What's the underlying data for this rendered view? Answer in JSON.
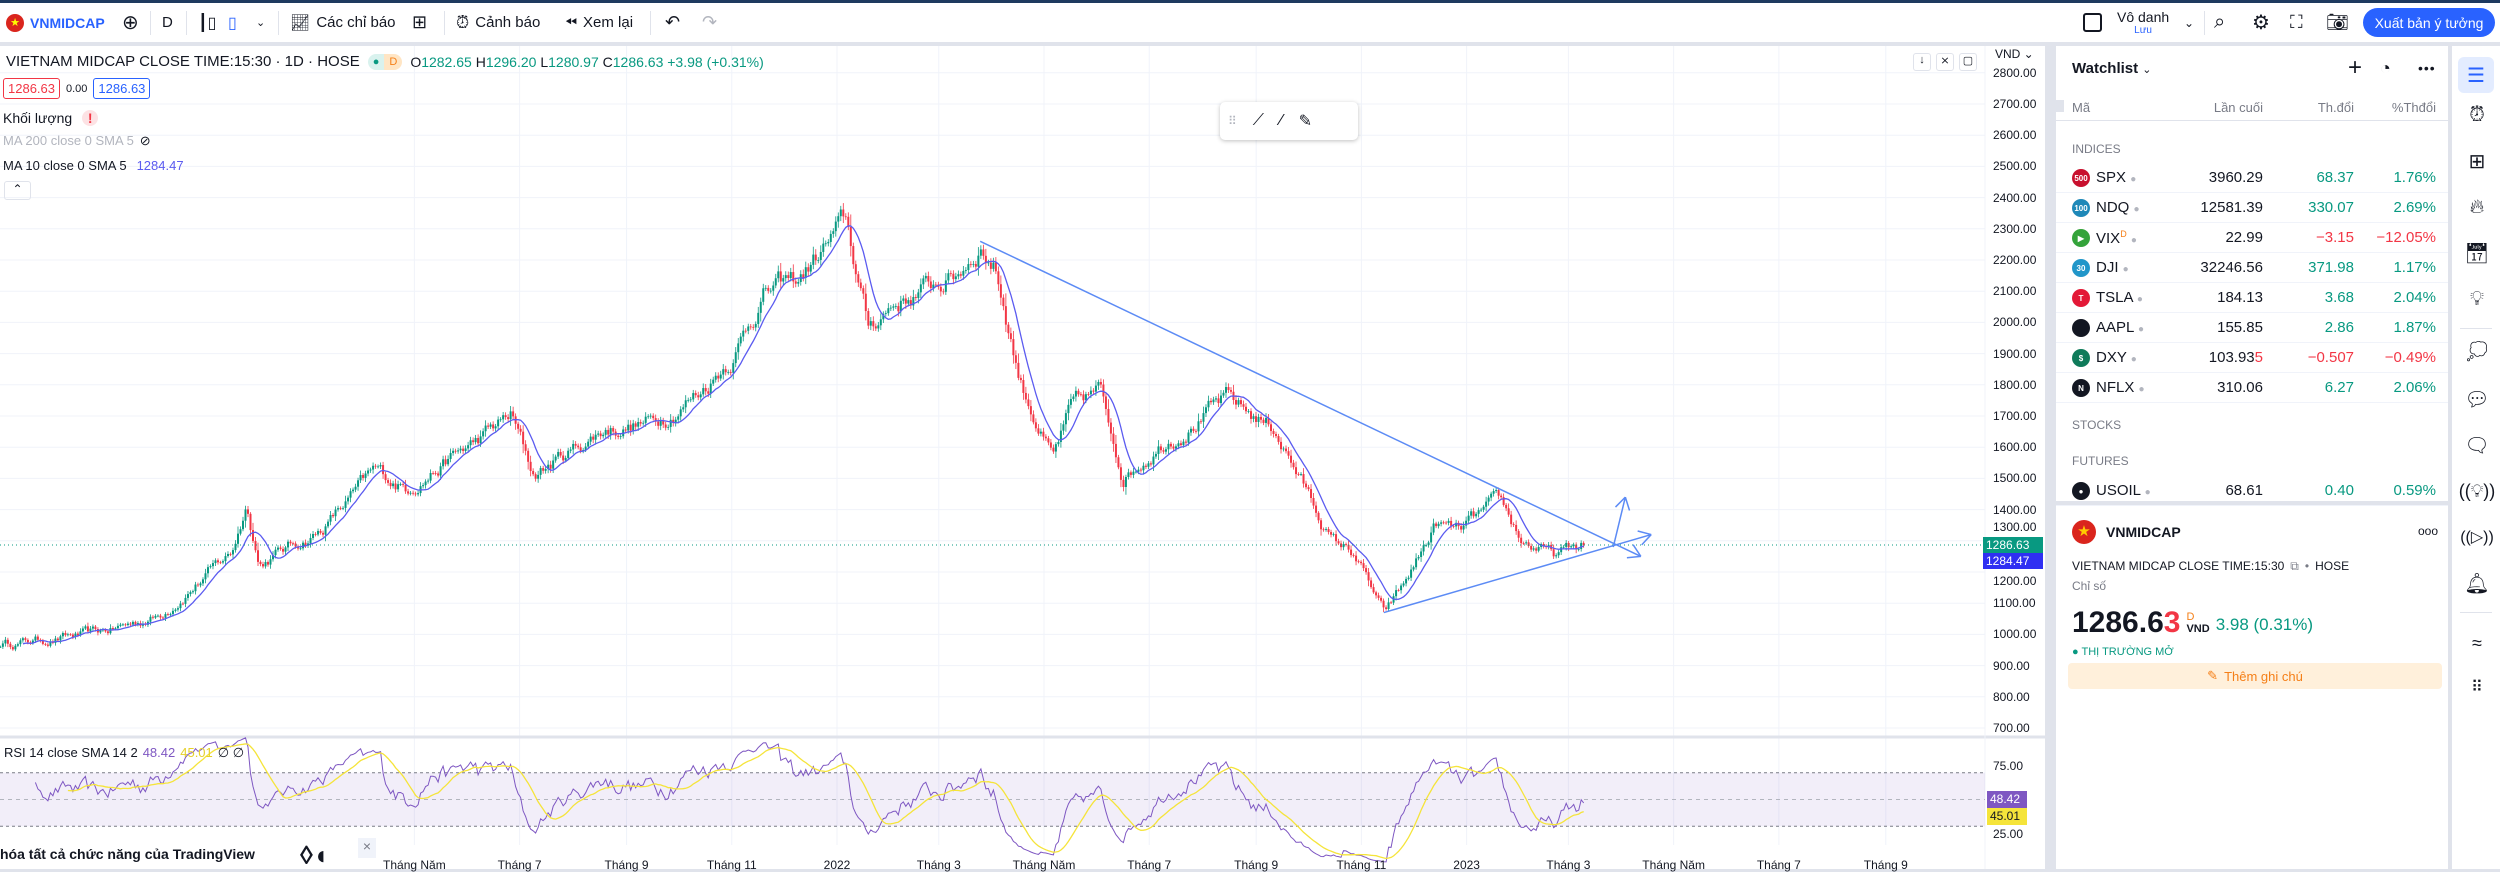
{
  "toolbar": {
    "symbol": "VNMIDCAP",
    "interval": "D",
    "indicators": "Các chỉ báo",
    "alert": "Cảnh báo",
    "replay": "Xem lại",
    "layout_name": "Vô danh",
    "save": "Lưu",
    "publish": "Xuất bản ý tưởng"
  },
  "legend": {
    "title": "VIETNAM MIDCAP CLOSE TIME:15:30 · 1D · HOSE",
    "badge": "D",
    "o_label": "O",
    "o": "1282.65",
    "h_label": "H",
    "h": "1296.20",
    "l_label": "L",
    "l": "1280.97",
    "c_label": "C",
    "c": "1286.63",
    "change": "+3.98 (+0.31%)",
    "sell": "1286.63",
    "spread": "0.00",
    "buy": "1286.63",
    "volume": "Khối lượng",
    "ma200": "MA 200 close 0 SMA 5",
    "ma10": "MA 10 close 0 SMA 5",
    "ma10_value": "1284.47",
    "rsi": "RSI 14 close SMA 14 2",
    "rsi_value": "48.42",
    "rsi_sma_value": "45.01",
    "rsi_extra": "∅ ∅"
  },
  "currency": "VND",
  "price_axis": [
    "2800.00",
    "2700.00",
    "2600.00",
    "2500.00",
    "2400.00",
    "2300.00",
    "2200.00",
    "2100.00",
    "2000.00",
    "1900.00",
    "1800.00",
    "1700.00",
    "1600.00",
    "1500.00",
    "1400.00",
    "1300.00",
    "1200.00",
    "1100.00",
    "1000.00",
    "900.00",
    "800.00",
    "700.00"
  ],
  "price_labels": {
    "last": "1286.63",
    "ma": "1284.47"
  },
  "rsi_axis": [
    "75.00",
    "25.00"
  ],
  "rsi_labels": {
    "rsi": "48.42",
    "sma": "45.01"
  },
  "time_axis": [
    {
      "label": "Tháng Năm",
      "date": "2021-05-01"
    },
    {
      "label": "Tháng 7",
      "date": "2021-07-01"
    },
    {
      "label": "Tháng 9",
      "date": "2021-09-01"
    },
    {
      "label": "Tháng 11",
      "date": "2021-11-01"
    },
    {
      "label": "2022",
      "date": "2022-01-01"
    },
    {
      "label": "Tháng 3",
      "date": "2022-03-01"
    },
    {
      "label": "Tháng Năm",
      "date": "2022-05-01"
    },
    {
      "label": "Tháng 7",
      "date": "2022-07-01"
    },
    {
      "label": "Tháng 9",
      "date": "2022-09-01"
    },
    {
      "label": "Tháng 11",
      "date": "2022-11-01"
    },
    {
      "label": "2023",
      "date": "2023-01-01"
    },
    {
      "label": "Tháng 3",
      "date": "2023-03-01"
    },
    {
      "label": "Tháng Năm",
      "date": "2023-05-01"
    },
    {
      "label": "Tháng 7",
      "date": "2023-07-01"
    },
    {
      "label": "Tháng 9",
      "date": "2023-09-01"
    }
  ],
  "chart_data": {
    "type": "candlestick",
    "ylim": [
      700,
      2800
    ],
    "rsi_levels": [
      70,
      50,
      30
    ],
    "price_path": [
      [
        "2020-09-03",
        970
      ],
      [
        "2020-10-28",
        1000
      ],
      [
        "2020-12-04",
        1060
      ],
      [
        "2021-01-15",
        1260
      ],
      [
        "2021-01-24",
        1420
      ],
      [
        "2021-01-31",
        1230
      ],
      [
        "2021-03-07",
        1330
      ],
      [
        "2021-04-08",
        1520
      ],
      [
        "2021-04-26",
        1470
      ],
      [
        "2021-06-07",
        1620
      ],
      [
        "2021-06-26",
        1700
      ],
      [
        "2021-07-09",
        1510
      ],
      [
        "2021-08-20",
        1660
      ],
      [
        "2021-09-17",
        1680
      ],
      [
        "2021-10-14",
        1780
      ],
      [
        "2021-11-02",
        1900
      ],
      [
        "2021-11-20",
        2100
      ],
      [
        "2021-12-09",
        2130
      ],
      [
        "2022-01-06",
        2320
      ],
      [
        "2022-01-19",
        1980
      ],
      [
        "2022-02-02",
        2060
      ],
      [
        "2022-03-11",
        2150
      ],
      [
        "2022-03-25",
        2250
      ],
      [
        "2022-04-03",
        2180
      ],
      [
        "2022-04-17",
        1820
      ],
      [
        "2022-05-06",
        1560
      ],
      [
        "2022-05-17",
        1720
      ],
      [
        "2022-06-02",
        1780
      ],
      [
        "2022-06-16",
        1510
      ],
      [
        "2022-07-09",
        1620
      ],
      [
        "2022-08-15",
        1750
      ],
      [
        "2022-09-12",
        1660
      ],
      [
        "2022-10-01",
        1450
      ],
      [
        "2022-10-15",
        1300
      ],
      [
        "2022-10-28",
        1260
      ],
      [
        "2022-11-14",
        1060
      ],
      [
        "2022-11-25",
        1150
      ],
      [
        "2022-12-14",
        1350
      ],
      [
        "2022-12-27",
        1330
      ],
      [
        "2023-01-20",
        1420
      ],
      [
        "2023-02-02",
        1300
      ],
      [
        "2023-02-21",
        1250
      ],
      [
        "2023-03-11",
        1287
      ]
    ],
    "trendlines": [
      {
        "from": [
          "2022-03-25",
          2260
        ],
        "to": [
          "2023-04-12",
          1250
        ]
      },
      {
        "from": [
          "2022-11-14",
          1070
        ],
        "to": [
          "2023-04-18",
          1320
        ]
      },
      {
        "from": [
          "2023-03-27",
          1280
        ],
        "to": [
          "2023-04-03",
          1440
        ]
      }
    ],
    "colors": {
      "up": "#089981",
      "down": "#f23645",
      "ma": "#5b5bf0",
      "rsi": "#7e57c2",
      "rsi_sma": "#f5e43a",
      "trend": "#5c8bf5"
    }
  },
  "watchlist": {
    "title": "Watchlist",
    "cols": [
      "Mã",
      "Lần cuối",
      "Th.đổi",
      "%Thđổi"
    ],
    "sections": {
      "indices": "INDICES",
      "stocks": "STOCKS",
      "futures": "FUTURES"
    },
    "rows": [
      {
        "icon": "500",
        "color": "#c8102e",
        "sym": "SPX",
        "last": "3960.29",
        "chg": "68.37",
        "pct": "1.76%",
        "up": true
      },
      {
        "icon": "100",
        "color": "#1e88b8",
        "sym": "NDQ",
        "last": "12581.39",
        "chg": "330.07",
        "pct": "2.69%",
        "up": true
      },
      {
        "icon": "▶",
        "color": "#34a33a",
        "sym": "VIX",
        "badge": "D",
        "last": "22.99",
        "chg": "−3.15",
        "pct": "−12.05%",
        "up": false
      },
      {
        "icon": "30",
        "color": "#2196c9",
        "sym": "DJI",
        "last": "32246.56",
        "chg": "371.98",
        "pct": "1.17%",
        "up": true
      },
      {
        "icon": "T",
        "color": "#e31937",
        "sym": "TSLA",
        "last": "184.13",
        "chg": "3.68",
        "pct": "2.04%",
        "up": true
      },
      {
        "icon": "",
        "color": "#131722",
        "sym": "AAPL",
        "last": "155.85",
        "chg": "2.86",
        "pct": "1.87%",
        "up": true
      },
      {
        "icon": "$",
        "color": "#0f7b5a",
        "sym": "DXY",
        "last": "103.93",
        "last_tail": "5",
        "chg": "−0.507",
        "pct": "−0.49%",
        "up": false
      },
      {
        "icon": "N",
        "color": "#131722",
        "sym": "NFLX",
        "last": "310.06",
        "chg": "6.27",
        "pct": "2.06%",
        "up": true
      }
    ],
    "futures": [
      {
        "icon": "●",
        "color": "#131722",
        "sym": "USOIL",
        "last": "68.61",
        "chg": "0.40",
        "pct": "0.59%",
        "up": true
      }
    ]
  },
  "details": {
    "symbol": "VNMIDCAP",
    "description": "VIETNAM MIDCAP CLOSE TIME:15:30",
    "exchange": "HOSE",
    "type": "Chỉ số",
    "price_main": "1286.6",
    "price_tail": "3",
    "badge": "D",
    "currency": "VND",
    "change": "3.98 (0.31%)",
    "status": "THỊ TRƯỜNG MỞ",
    "note": "Thêm ghi chú"
  },
  "promo": {
    "text": "hóa tất cả chức năng của TradingView",
    "close": "×"
  }
}
